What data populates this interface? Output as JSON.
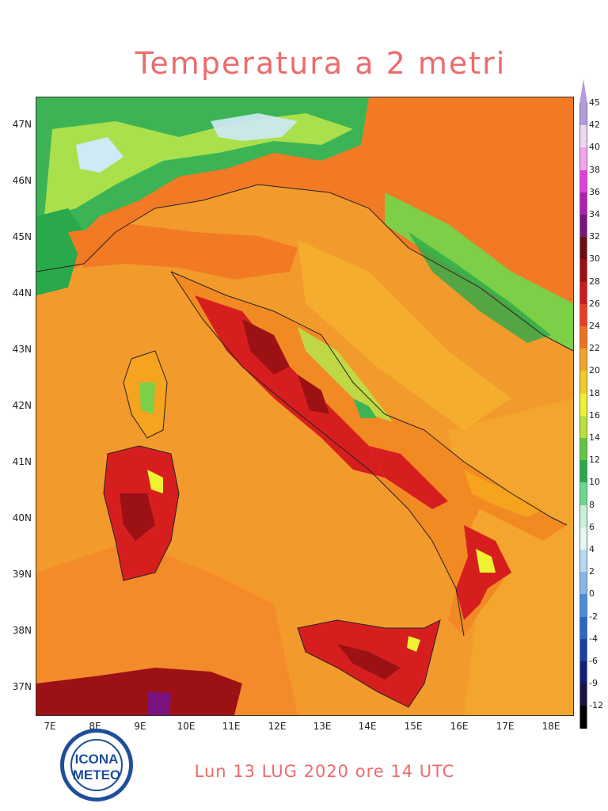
{
  "title": "Temperatura a 2 metri",
  "footer": "Lun 13 LUG 2020 ore 14 UTC",
  "logo": {
    "line1": "ICONA",
    "line2": "METEO"
  },
  "lat_labels": [
    "47N",
    "46N",
    "45N",
    "44N",
    "43N",
    "42N",
    "41N",
    "40N",
    "39N",
    "38N",
    "37N"
  ],
  "lon_labels": [
    "7E",
    "8E",
    "9E",
    "10E",
    "11E",
    "12E",
    "13E",
    "14E",
    "15E",
    "16E",
    "17E",
    "18E"
  ],
  "colorbar": {
    "ticks": [
      "45",
      "42",
      "40",
      "38",
      "36",
      "34",
      "32",
      "30",
      "28",
      "26",
      "24",
      "22",
      "20",
      "18",
      "16",
      "14",
      "12",
      "10",
      "8",
      "6",
      "4",
      "2",
      "0",
      "-2",
      "-4",
      "-6",
      "-9",
      "-12"
    ],
    "colors": [
      "#b39be0",
      "#eed7f2",
      "#f6a3ee",
      "#e23ee0",
      "#b11eb3",
      "#7a1380",
      "#6e0d0d",
      "#9e0f0f",
      "#d01818",
      "#f23a1e",
      "#f5701d",
      "#f6a31f",
      "#f4cd1f",
      "#eef230",
      "#b8e23a",
      "#64c740",
      "#2aa94a",
      "#68d98f",
      "#c9f2d6",
      "#e7f7f3",
      "#b8d9f1",
      "#84b7ea",
      "#4a8bdc",
      "#2866c7",
      "#1a3fa6",
      "#101e7a",
      "#1a1240",
      "#000000"
    ]
  },
  "colors": {
    "sea": "#f39a2c",
    "land_warm": "#f27a24",
    "hot": "#d71e1e",
    "very_hot": "#9c1214",
    "alpine_green": "#3cb455",
    "alpine_light": "#b6e44a",
    "snow": "#cfe9f7",
    "title_red": "#ec6b6b"
  }
}
